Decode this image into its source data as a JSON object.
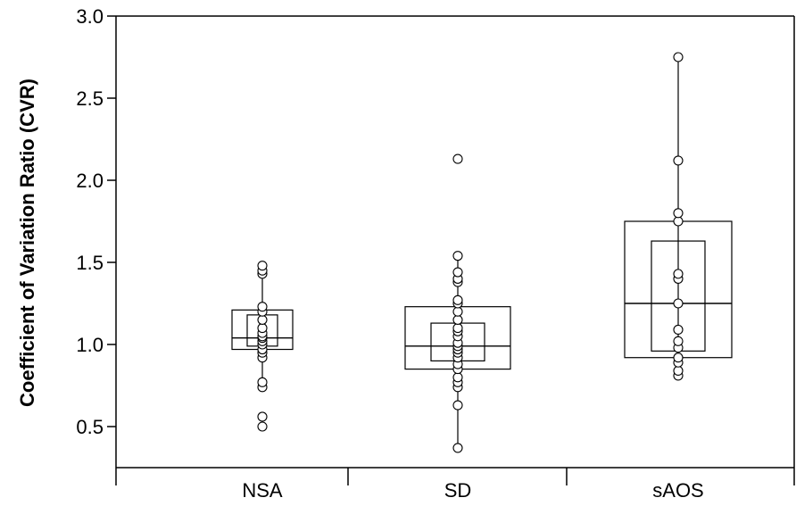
{
  "chart_data": {
    "type": "box",
    "title": "",
    "xlabel": "",
    "ylabel": "Coefficient of Variation Ratio (CVR)",
    "ylim": [
      0.25,
      3.0
    ],
    "yticks": [
      0.5,
      1.0,
      1.5,
      2.0,
      2.5,
      3.0
    ],
    "ytick_labels": [
      "0.5",
      "1.0",
      "1.5",
      "2.0",
      "2.5",
      "3.0"
    ],
    "categories": [
      "NSA",
      "SD",
      "sAOS"
    ],
    "groups": [
      {
        "name": "NSA",
        "outer_box": [
          0.97,
          1.21
        ],
        "inner_box": [
          0.99,
          1.18
        ],
        "median": 1.04,
        "whisker": [
          0.76,
          1.45
        ],
        "points": [
          0.5,
          0.56,
          0.74,
          0.77,
          0.92,
          0.95,
          0.97,
          1.0,
          1.02,
          1.04,
          1.05,
          1.07,
          1.1,
          1.15,
          1.2,
          1.23,
          1.43,
          1.45,
          1.48
        ]
      },
      {
        "name": "SD",
        "outer_box": [
          0.85,
          1.23
        ],
        "inner_box": [
          0.9,
          1.13
        ],
        "median": 0.99,
        "whisker": [
          0.37,
          1.55
        ],
        "points": [
          0.37,
          0.63,
          0.74,
          0.77,
          0.8,
          0.85,
          0.88,
          0.92,
          0.95,
          0.97,
          0.99,
          1.01,
          1.05,
          1.08,
          1.1,
          1.15,
          1.2,
          1.25,
          1.27,
          1.38,
          1.4,
          1.44,
          1.54,
          2.13
        ]
      },
      {
        "name": "sAOS",
        "outer_box": [
          0.92,
          1.75
        ],
        "inner_box": [
          0.96,
          1.63
        ],
        "median": 1.25,
        "whisker": [
          0.82,
          2.75
        ],
        "points": [
          0.81,
          0.84,
          0.89,
          0.92,
          0.98,
          1.02,
          1.09,
          1.25,
          1.4,
          1.43,
          1.75,
          1.8,
          2.12,
          2.75
        ]
      }
    ]
  }
}
